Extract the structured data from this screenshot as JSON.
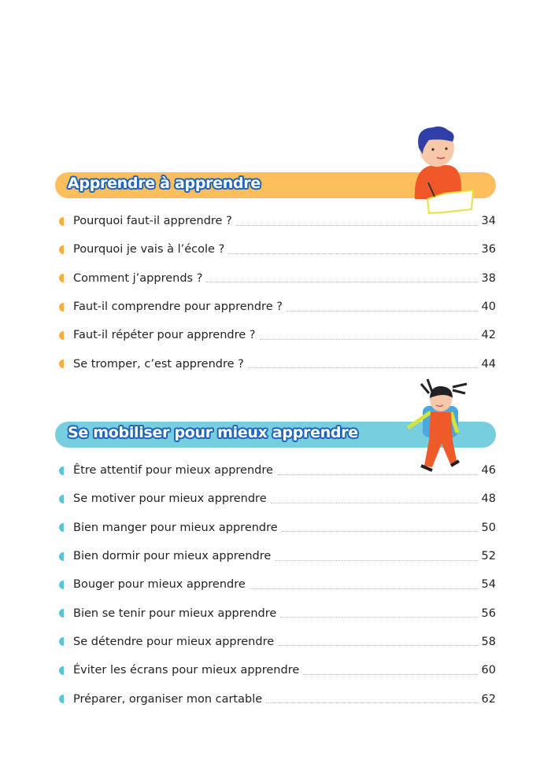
{
  "sections": [
    {
      "title": "Apprendre à apprendre",
      "color": "#FDBE5C",
      "bullet_color": "#F6AE3F",
      "items": [
        {
          "label": "Pourquoi faut-il apprendre ?",
          "page": "34"
        },
        {
          "label": "Pourquoi je vais à l’école ?",
          "page": "36"
        },
        {
          "label": "Comment j’apprends ?",
          "page": "38"
        },
        {
          "label": "Faut-il comprendre pour apprendre ?",
          "page": "40"
        },
        {
          "label": "Faut-il répéter pour apprendre ?",
          "page": "42"
        },
        {
          "label": "Se tromper, c’est apprendre ?",
          "page": "44"
        }
      ]
    },
    {
      "title": "Se mobiliser pour mieux apprendre",
      "color": "#77CEDE",
      "bullet_color": "#5BC3D6",
      "items": [
        {
          "label": "Être attentif pour mieux apprendre",
          "page": "46"
        },
        {
          "label": "Se motiver pour mieux apprendre",
          "page": "48"
        },
        {
          "label": "Bien manger pour mieux apprendre",
          "page": "50"
        },
        {
          "label": "Bien dormir pour mieux apprendre",
          "page": "52"
        },
        {
          "label": "Bouger pour mieux apprendre",
          "page": "54"
        },
        {
          "label": "Bien se tenir pour mieux apprendre",
          "page": "56"
        },
        {
          "label": "Se détendre pour mieux apprendre",
          "page": "58"
        },
        {
          "label": "Éviter les écrans pour mieux apprendre",
          "page": "60"
        },
        {
          "label": "Préparer, organiser mon cartable",
          "page": "62"
        }
      ]
    }
  ],
  "title_outline_color": "#1D63B8"
}
